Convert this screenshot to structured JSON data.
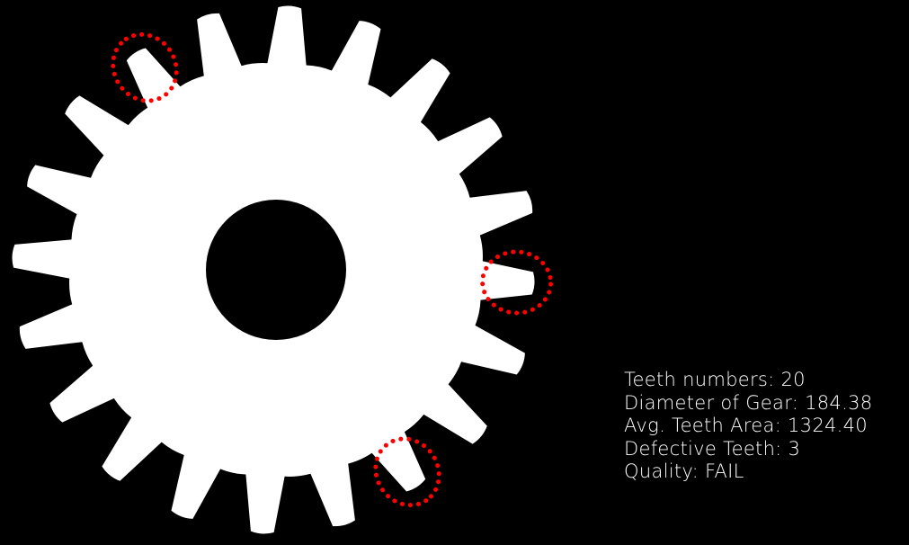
{
  "colors": {
    "background": "#000000",
    "gear": "#ffffff",
    "defect_marker": "#ff0000",
    "text": "#ffffff"
  },
  "gear": {
    "teeth_count": 20,
    "defective_tooth_indices": [
      18,
      5,
      8
    ]
  },
  "stats": {
    "teeth_numbers": "Teeth numbers: 20",
    "diameter": "Diameter of Gear: 184.38",
    "avg_teeth_area": "Avg. Teeth Area: 1324.40",
    "defective_teeth": "Defective Teeth: 3",
    "quality": "Quality: FAIL"
  }
}
